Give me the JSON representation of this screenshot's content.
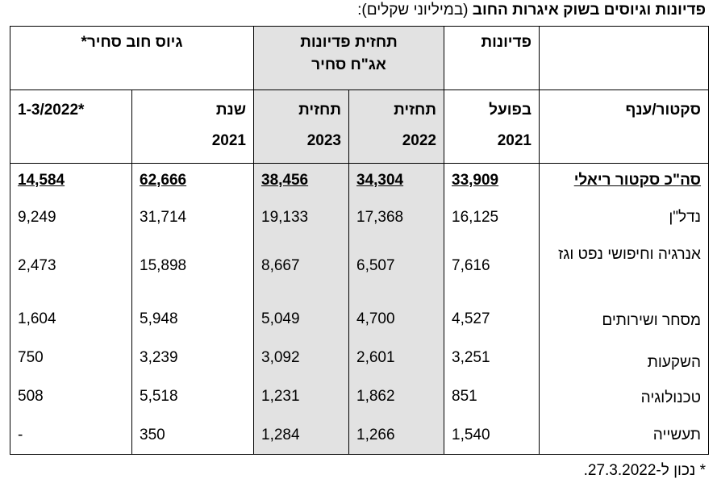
{
  "title": {
    "bold": "פדיונות וגיוסים בשוק איגרות החוב",
    "normal": " (במיליוני שקלים):"
  },
  "group_headers": {
    "redemptions": "פדיונות",
    "forecast": "תחזית פדיונות אג\"ח סחיר",
    "raise": "גיוס חוב סחיר*"
  },
  "column_headers": {
    "sector": "סקטור/ענף",
    "actual_2021": [
      "בפועל",
      "2021"
    ],
    "forecast_2022": [
      "תחזית",
      "2022"
    ],
    "forecast_2023": [
      "תחזית",
      "2023"
    ],
    "year_2021": [
      "שנת",
      "2021"
    ],
    "q1_2022": [
      "1-3/2022*"
    ]
  },
  "rows": [
    {
      "sector": "סה\"כ סקטור ריאלי",
      "values": [
        "33,909",
        "34,304",
        "38,456",
        "62,666",
        "14,584"
      ]
    },
    {
      "sector": "נדל\"ן",
      "values": [
        "16,125",
        "17,368",
        "19,133",
        "31,714",
        "9,249"
      ]
    },
    {
      "sector": "אנרגיה וחיפושי נפט וגז",
      "values": [
        "7,616",
        "6,507",
        "8,667",
        "15,898",
        "2,473"
      ]
    },
    {
      "sector": "מסחר ושירותים",
      "values": [
        "4,527",
        "4,700",
        "5,049",
        "5,948",
        "1,604"
      ]
    },
    {
      "sector": "השקעות",
      "values": [
        "3,251",
        "2,601",
        "3,092",
        "3,239",
        "750"
      ]
    },
    {
      "sector": "טכנולוגיה",
      "values": [
        "851",
        "1,862",
        "1,231",
        "5,518",
        "508"
      ]
    },
    {
      "sector": "תעשייה",
      "values": [
        "1,540",
        "1,266",
        "1,284",
        "350",
        "-"
      ]
    }
  ],
  "footnote": "* נכון ל-27.3.2022."
}
